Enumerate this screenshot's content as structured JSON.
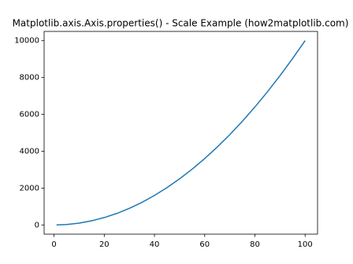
{
  "chart_data": {
    "type": "line",
    "title": "Matplotlib.axis.Axis.properties() - Scale Example (how2matplotlib.com)",
    "x": [
      1,
      5,
      10,
      15,
      20,
      25,
      30,
      35,
      40,
      45,
      50,
      55,
      60,
      65,
      70,
      75,
      80,
      85,
      90,
      95,
      100
    ],
    "values": [
      1,
      25,
      100,
      225,
      400,
      625,
      900,
      1225,
      1600,
      2025,
      2500,
      3025,
      3600,
      4225,
      4900,
      5625,
      6400,
      7225,
      8100,
      9025,
      10000
    ],
    "color": "#1f77b4",
    "xlim": [
      -3.95,
      104.95
    ],
    "xticks": [
      0,
      20,
      40,
      60,
      80,
      100
    ],
    "ylim": [
      -498.95,
      10499.95
    ],
    "yticks": [
      0,
      2000,
      4000,
      6000,
      8000,
      10000
    ],
    "grid": false
  }
}
